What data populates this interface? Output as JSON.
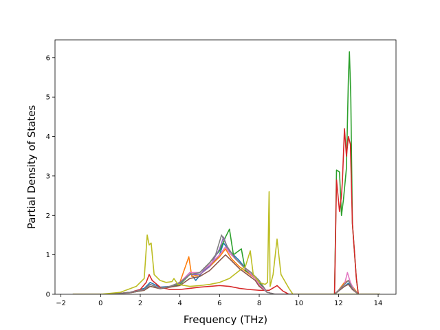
{
  "chart_data": {
    "type": "line",
    "xlabel": "Frequency (THz)",
    "ylabel": "Partial Density of States",
    "xlim": [
      -2.3,
      14.9
    ],
    "ylim": [
      0,
      6.45
    ],
    "xticks": [
      -2,
      0,
      2,
      4,
      6,
      8,
      10,
      12,
      14
    ],
    "yticks": [
      0,
      1,
      2,
      3,
      4,
      5,
      6
    ],
    "xtick_labels": [
      "−2",
      "0",
      "2",
      "4",
      "6",
      "8",
      "10",
      "12",
      "14"
    ],
    "ytick_labels": [
      "0",
      "1",
      "2",
      "3",
      "4",
      "5",
      "6"
    ],
    "grid": false,
    "series": [
      {
        "color": "#1f77b4",
        "points": [
          [
            -1.4,
            0
          ],
          [
            0.5,
            0
          ],
          [
            1.5,
            0.05
          ],
          [
            2.2,
            0.15
          ],
          [
            2.5,
            0.3
          ],
          [
            3.0,
            0.18
          ],
          [
            3.5,
            0.2
          ],
          [
            4.0,
            0.28
          ],
          [
            4.5,
            0.55
          ],
          [
            4.8,
            0.35
          ],
          [
            5.2,
            0.6
          ],
          [
            5.6,
            0.75
          ],
          [
            6.0,
            1.0
          ],
          [
            6.2,
            1.3
          ],
          [
            6.5,
            1.1
          ],
          [
            7.0,
            0.85
          ],
          [
            7.4,
            0.6
          ],
          [
            7.8,
            0.4
          ],
          [
            8.0,
            0.25
          ],
          [
            8.4,
            0.05
          ],
          [
            8.8,
            0
          ],
          [
            11.8,
            0
          ],
          [
            12.0,
            0.08
          ],
          [
            12.3,
            0.2
          ],
          [
            12.5,
            0.28
          ],
          [
            12.7,
            0.15
          ],
          [
            13.0,
            0
          ],
          [
            14.1,
            0
          ]
        ]
      },
      {
        "color": "#ff7f0e",
        "points": [
          [
            -1.4,
            0
          ],
          [
            0.5,
            0
          ],
          [
            1.5,
            0.05
          ],
          [
            2.2,
            0.12
          ],
          [
            2.5,
            0.25
          ],
          [
            3.0,
            0.15
          ],
          [
            3.5,
            0.2
          ],
          [
            4.0,
            0.3
          ],
          [
            4.45,
            0.95
          ],
          [
            4.6,
            0.45
          ],
          [
            5.0,
            0.5
          ],
          [
            5.5,
            0.7
          ],
          [
            6.0,
            0.95
          ],
          [
            6.3,
            1.15
          ],
          [
            6.6,
            0.9
          ],
          [
            7.0,
            0.7
          ],
          [
            7.4,
            0.55
          ],
          [
            7.8,
            0.4
          ],
          [
            8.0,
            0.22
          ],
          [
            8.4,
            0.05
          ],
          [
            8.8,
            0
          ],
          [
            11.8,
            0
          ],
          [
            12.0,
            0.1
          ],
          [
            12.3,
            0.3
          ],
          [
            12.5,
            0.35
          ],
          [
            12.7,
            0.2
          ],
          [
            13.0,
            0
          ],
          [
            14.1,
            0
          ]
        ]
      },
      {
        "color": "#2ca02c",
        "points": [
          [
            -1.4,
            0
          ],
          [
            0.5,
            0
          ],
          [
            1.5,
            0.04
          ],
          [
            2.2,
            0.1
          ],
          [
            2.5,
            0.2
          ],
          [
            3.0,
            0.15
          ],
          [
            3.5,
            0.18
          ],
          [
            4.0,
            0.25
          ],
          [
            4.5,
            0.5
          ],
          [
            5.0,
            0.55
          ],
          [
            5.5,
            0.8
          ],
          [
            6.0,
            1.1
          ],
          [
            6.3,
            1.45
          ],
          [
            6.5,
            1.65
          ],
          [
            6.7,
            1.0
          ],
          [
            7.1,
            1.15
          ],
          [
            7.3,
            0.6
          ],
          [
            7.8,
            0.45
          ],
          [
            8.0,
            0.3
          ],
          [
            8.4,
            0.05
          ],
          [
            8.8,
            0
          ],
          [
            11.8,
            0
          ],
          [
            11.9,
            3.15
          ],
          [
            12.05,
            3.1
          ],
          [
            12.15,
            2.0
          ],
          [
            12.25,
            2.4
          ],
          [
            12.4,
            3.2
          ],
          [
            12.5,
            5.5
          ],
          [
            12.55,
            6.15
          ],
          [
            12.62,
            5.0
          ],
          [
            12.7,
            1.8
          ],
          [
            12.9,
            0.4
          ],
          [
            13.0,
            0
          ],
          [
            14.1,
            0
          ]
        ]
      },
      {
        "color": "#d62728",
        "points": [
          [
            -1.4,
            0
          ],
          [
            0.5,
            0
          ],
          [
            1.5,
            0.05
          ],
          [
            2.0,
            0.12
          ],
          [
            2.3,
            0.3
          ],
          [
            2.45,
            0.5
          ],
          [
            2.6,
            0.35
          ],
          [
            3.0,
            0.18
          ],
          [
            3.5,
            0.12
          ],
          [
            4.0,
            0.12
          ],
          [
            4.5,
            0.15
          ],
          [
            5.0,
            0.18
          ],
          [
            5.5,
            0.2
          ],
          [
            6.0,
            0.22
          ],
          [
            6.5,
            0.2
          ],
          [
            7.0,
            0.15
          ],
          [
            7.5,
            0.12
          ],
          [
            8.0,
            0.1
          ],
          [
            8.5,
            0.1
          ],
          [
            8.9,
            0.22
          ],
          [
            9.2,
            0.08
          ],
          [
            9.5,
            0
          ],
          [
            11.8,
            0
          ],
          [
            11.9,
            2.9
          ],
          [
            12.05,
            2.1
          ],
          [
            12.15,
            2.5
          ],
          [
            12.2,
            2.9
          ],
          [
            12.3,
            4.2
          ],
          [
            12.4,
            3.5
          ],
          [
            12.5,
            4.0
          ],
          [
            12.6,
            3.8
          ],
          [
            12.7,
            1.8
          ],
          [
            12.9,
            0.4
          ],
          [
            13.0,
            0
          ],
          [
            14.1,
            0
          ]
        ]
      },
      {
        "color": "#9467bd",
        "points": [
          [
            -1.4,
            0
          ],
          [
            0.5,
            0
          ],
          [
            1.5,
            0.04
          ],
          [
            2.2,
            0.12
          ],
          [
            2.5,
            0.25
          ],
          [
            3.0,
            0.15
          ],
          [
            3.5,
            0.2
          ],
          [
            4.0,
            0.28
          ],
          [
            4.5,
            0.5
          ],
          [
            5.0,
            0.5
          ],
          [
            5.5,
            0.7
          ],
          [
            6.0,
            1.15
          ],
          [
            6.2,
            1.45
          ],
          [
            6.5,
            1.05
          ],
          [
            7.0,
            0.8
          ],
          [
            7.4,
            0.6
          ],
          [
            7.8,
            0.4
          ],
          [
            8.0,
            0.25
          ],
          [
            8.4,
            0.05
          ],
          [
            8.8,
            0
          ],
          [
            11.8,
            0
          ],
          [
            12.0,
            0.1
          ],
          [
            12.3,
            0.25
          ],
          [
            12.5,
            0.35
          ],
          [
            12.7,
            0.15
          ],
          [
            13.0,
            0
          ],
          [
            14.1,
            0
          ]
        ]
      },
      {
        "color": "#8c564b",
        "points": [
          [
            -1.4,
            0
          ],
          [
            0.5,
            0
          ],
          [
            1.5,
            0.04
          ],
          [
            2.2,
            0.1
          ],
          [
            2.5,
            0.2
          ],
          [
            3.0,
            0.14
          ],
          [
            3.5,
            0.18
          ],
          [
            4.0,
            0.22
          ],
          [
            4.5,
            0.4
          ],
          [
            5.0,
            0.45
          ],
          [
            5.5,
            0.6
          ],
          [
            6.0,
            0.85
          ],
          [
            6.3,
            1.0
          ],
          [
            6.6,
            0.85
          ],
          [
            7.0,
            0.65
          ],
          [
            7.4,
            0.5
          ],
          [
            7.8,
            0.35
          ],
          [
            8.0,
            0.2
          ],
          [
            8.4,
            0.05
          ],
          [
            8.8,
            0
          ],
          [
            11.8,
            0
          ],
          [
            12.0,
            0.08
          ],
          [
            12.3,
            0.2
          ],
          [
            12.5,
            0.25
          ],
          [
            12.7,
            0.12
          ],
          [
            13.0,
            0
          ],
          [
            14.1,
            0
          ]
        ]
      },
      {
        "color": "#e377c2",
        "points": [
          [
            -1.4,
            0
          ],
          [
            0.5,
            0
          ],
          [
            1.5,
            0.05
          ],
          [
            2.2,
            0.12
          ],
          [
            2.5,
            0.25
          ],
          [
            3.0,
            0.15
          ],
          [
            3.5,
            0.2
          ],
          [
            4.0,
            0.3
          ],
          [
            4.5,
            0.55
          ],
          [
            5.0,
            0.55
          ],
          [
            5.5,
            0.75
          ],
          [
            6.0,
            1.0
          ],
          [
            6.3,
            1.2
          ],
          [
            6.5,
            1.05
          ],
          [
            7.0,
            0.8
          ],
          [
            7.4,
            0.6
          ],
          [
            7.8,
            0.4
          ],
          [
            8.0,
            0.25
          ],
          [
            8.4,
            0.05
          ],
          [
            8.8,
            0
          ],
          [
            11.8,
            0
          ],
          [
            12.0,
            0.1
          ],
          [
            12.3,
            0.25
          ],
          [
            12.45,
            0.55
          ],
          [
            12.6,
            0.3
          ],
          [
            12.8,
            0.1
          ],
          [
            13.0,
            0
          ],
          [
            14.1,
            0
          ]
        ]
      },
      {
        "color": "#7f7f7f",
        "points": [
          [
            -1.4,
            0
          ],
          [
            0.5,
            0
          ],
          [
            1.5,
            0.05
          ],
          [
            2.2,
            0.12
          ],
          [
            2.5,
            0.25
          ],
          [
            3.0,
            0.15
          ],
          [
            3.5,
            0.2
          ],
          [
            4.0,
            0.3
          ],
          [
            4.5,
            0.5
          ],
          [
            5.0,
            0.55
          ],
          [
            5.5,
            0.8
          ],
          [
            5.8,
            1.0
          ],
          [
            6.1,
            1.5
          ],
          [
            6.4,
            1.2
          ],
          [
            6.8,
            0.9
          ],
          [
            7.2,
            0.7
          ],
          [
            7.6,
            0.55
          ],
          [
            8.0,
            0.35
          ],
          [
            8.4,
            0.05
          ],
          [
            8.8,
            0
          ],
          [
            11.8,
            0
          ],
          [
            12.0,
            0.1
          ],
          [
            12.3,
            0.25
          ],
          [
            12.5,
            0.35
          ],
          [
            12.7,
            0.15
          ],
          [
            13.0,
            0
          ],
          [
            14.1,
            0
          ]
        ]
      },
      {
        "color": "#bcbd22",
        "points": [
          [
            -1.4,
            0
          ],
          [
            0,
            0
          ],
          [
            1.0,
            0.05
          ],
          [
            1.8,
            0.2
          ],
          [
            2.2,
            0.4
          ],
          [
            2.35,
            1.5
          ],
          [
            2.45,
            1.25
          ],
          [
            2.55,
            1.3
          ],
          [
            2.7,
            0.5
          ],
          [
            3.0,
            0.35
          ],
          [
            3.3,
            0.3
          ],
          [
            3.6,
            0.32
          ],
          [
            3.7,
            0.4
          ],
          [
            3.9,
            0.25
          ],
          [
            4.5,
            0.2
          ],
          [
            5.0,
            0.22
          ],
          [
            5.5,
            0.25
          ],
          [
            6.0,
            0.3
          ],
          [
            6.5,
            0.4
          ],
          [
            7.0,
            0.6
          ],
          [
            7.3,
            0.7
          ],
          [
            7.55,
            1.1
          ],
          [
            7.7,
            0.5
          ],
          [
            8.0,
            0.3
          ],
          [
            8.3,
            0.25
          ],
          [
            8.42,
            0.3
          ],
          [
            8.5,
            2.6
          ],
          [
            8.55,
            0.2
          ],
          [
            8.7,
            0.5
          ],
          [
            8.9,
            1.4
          ],
          [
            9.1,
            0.5
          ],
          [
            9.5,
            0.15
          ],
          [
            9.7,
            0
          ],
          [
            11.8,
            0
          ],
          [
            14.1,
            0
          ]
        ]
      }
    ]
  }
}
